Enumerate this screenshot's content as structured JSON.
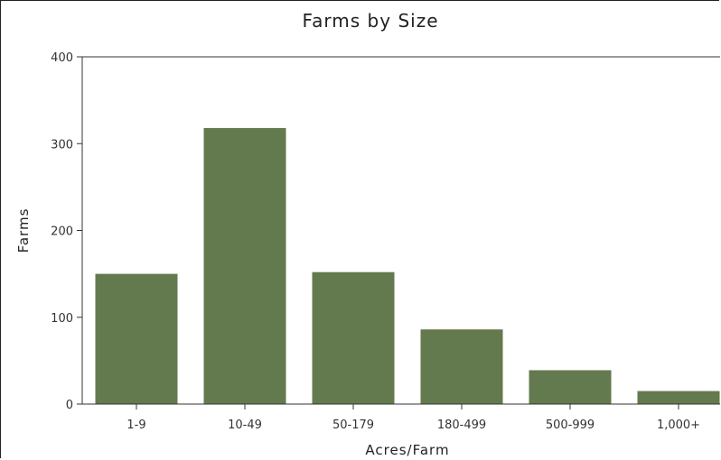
{
  "chart_data": {
    "type": "bar",
    "title": "Farms by Size",
    "xlabel": "Acres/Farm",
    "ylabel": "Farms",
    "categories": [
      "1-9",
      "10-49",
      "50-179",
      "180-499",
      "500-999",
      "1,000+"
    ],
    "values": [
      150,
      318,
      152,
      86,
      39,
      15
    ],
    "ylim": [
      0,
      400
    ],
    "yticks": [
      0,
      100,
      200,
      300,
      400
    ],
    "bar_color": "#637a4f",
    "grid": false,
    "legend": "none"
  }
}
